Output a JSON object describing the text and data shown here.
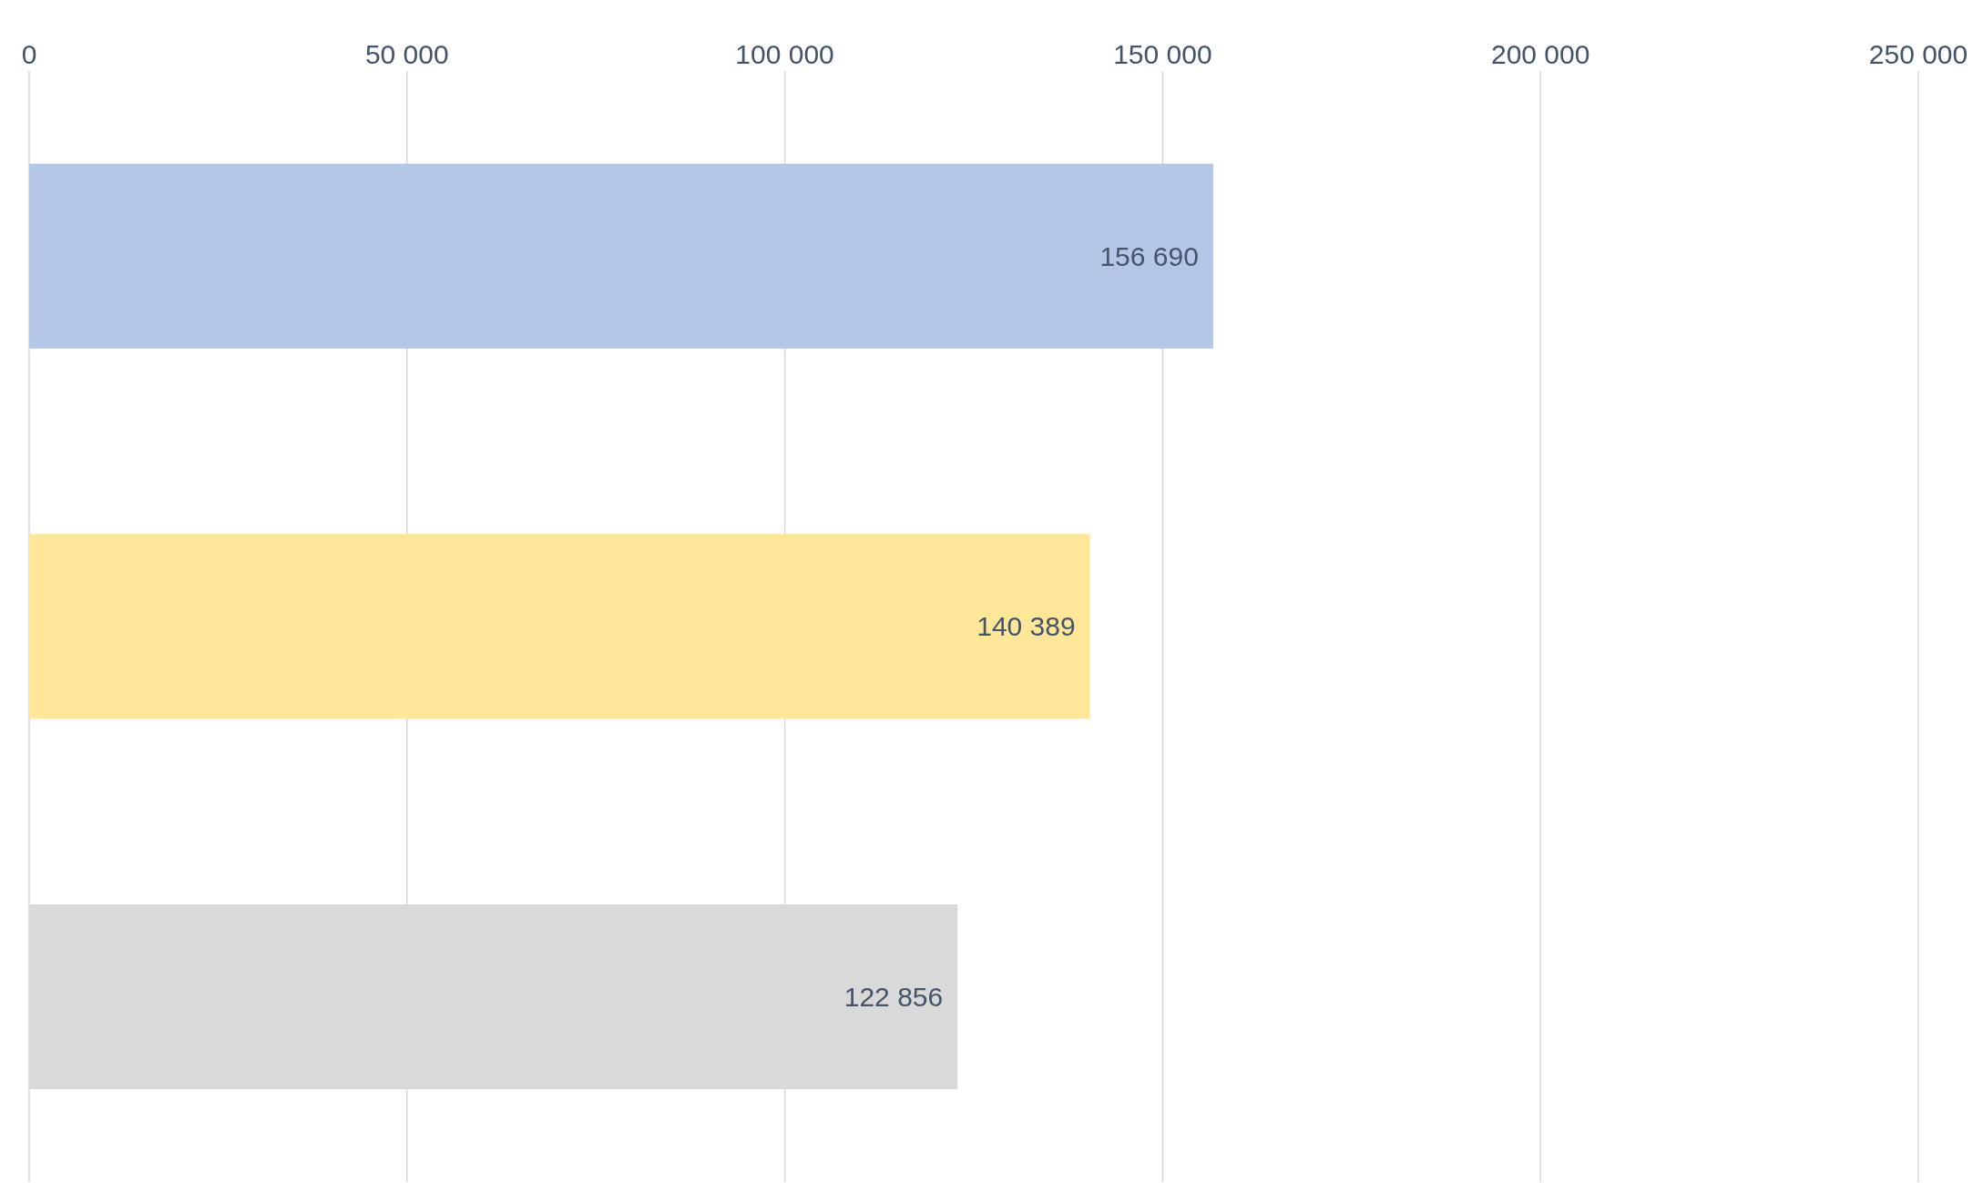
{
  "chart_data": {
    "type": "bar",
    "orientation": "horizontal",
    "categories": [
      null,
      null,
      null
    ],
    "values": [
      156690,
      140389,
      122856
    ],
    "colors": [
      "#b4c7e7",
      "#ffe699",
      "#d9d9d9"
    ],
    "value_labels": [
      "156 690",
      "140 389",
      "122 856"
    ],
    "xlim": [
      0,
      250000
    ],
    "xticks": [
      0,
      {
        "value": 50000,
        "label": "50 000"
      },
      {
        "value": 100000,
        "label": "100 000"
      },
      {
        "value": 150000,
        "label": "150 000"
      },
      {
        "value": 200000,
        "label": "200 000"
      },
      {
        "value": 250000,
        "label": "250 000"
      }
    ],
    "grid": "x",
    "tick_labels": "x"
  }
}
